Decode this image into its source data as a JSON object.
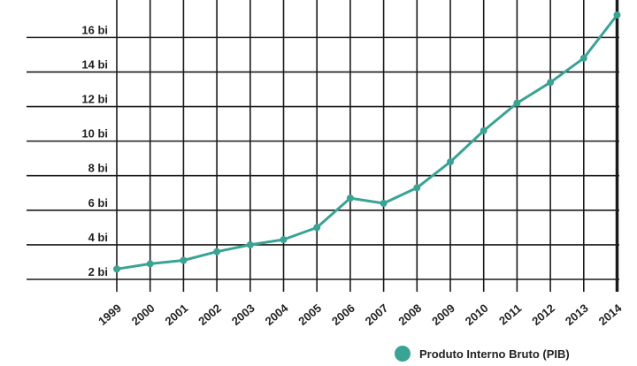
{
  "chart_data": {
    "type": "line",
    "x": [
      "1999",
      "2000",
      "2001",
      "2002",
      "2003",
      "2004",
      "2005",
      "2006",
      "2007",
      "2008",
      "2009",
      "2010",
      "2011",
      "2012",
      "2013",
      "2014"
    ],
    "series": [
      {
        "name": "Produto Interno Bruto (PIB)",
        "values": [
          2.6,
          2.9,
          3.1,
          3.6,
          4.0,
          4.3,
          5.0,
          6.7,
          6.4,
          7.3,
          8.8,
          10.6,
          12.2,
          13.4,
          14.8,
          17.3
        ]
      }
    ],
    "y_ticks": [
      {
        "value": 2,
        "label": "2 bi"
      },
      {
        "value": 4,
        "label": "4 bi"
      },
      {
        "value": 6,
        "label": "6 bi"
      },
      {
        "value": 8,
        "label": "8 bi"
      },
      {
        "value": 10,
        "label": "10 bi"
      },
      {
        "value": 12,
        "label": "12 bi"
      },
      {
        "value": 14,
        "label": "14 bi"
      },
      {
        "value": 16,
        "label": "16 bi"
      }
    ],
    "ylim": [
      2,
      17.4
    ],
    "grid": true,
    "legend_position": "bottom-right",
    "colors": {
      "line": "#3aa394",
      "grid": "#1a1a1a",
      "text": "#222222"
    }
  },
  "legend": {
    "label": "Produto Interno Bruto (PIB)"
  }
}
